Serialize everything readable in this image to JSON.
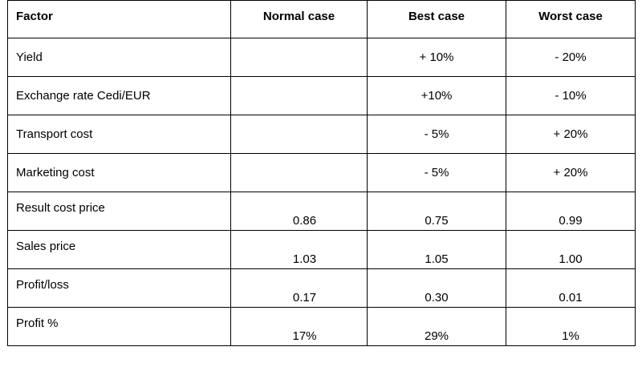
{
  "table": {
    "headers": [
      "Factor",
      "Normal case",
      "Best case",
      "Worst case"
    ],
    "adjustment_rows": [
      {
        "factor": "Yield",
        "normal": "",
        "best": "+ 10%",
        "worst": "- 20%"
      },
      {
        "factor": "Exchange rate Cedi/EUR",
        "normal": "",
        "best": "+10%",
        "worst": "- 10%"
      },
      {
        "factor": "Transport cost",
        "normal": "",
        "best": "- 5%",
        "worst": "+ 20%"
      },
      {
        "factor": "Marketing cost",
        "normal": "",
        "best": "- 5%",
        "worst": "+ 20%"
      }
    ],
    "result_rows": [
      {
        "factor": "Result cost price",
        "normal": "0.86",
        "best": "0.75",
        "worst": "0.99"
      },
      {
        "factor": "Sales price",
        "normal": "1.03",
        "best": "1.05",
        "worst": "1.00"
      },
      {
        "factor": "Profit/loss",
        "normal": "0.17",
        "best": "0.30",
        "worst": "0.01"
      },
      {
        "factor": "Profit %",
        "normal": "17%",
        "best": "29%",
        "worst": "1%"
      }
    ]
  }
}
